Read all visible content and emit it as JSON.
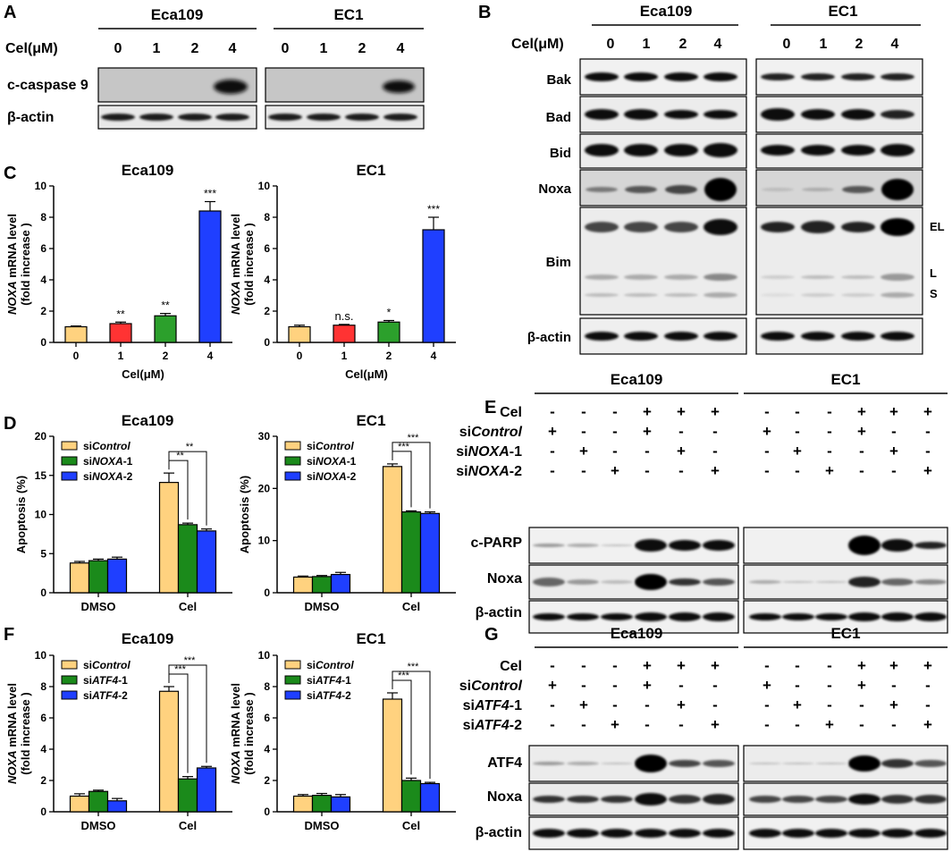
{
  "colors": {
    "bar_0": "#ffd27f",
    "bar_1": "#ff3333",
    "bar_2": "#2ca02c",
    "bar_4": "#1f3fff",
    "siControl": "#ffd27f",
    "siKD1": "#1b8a1b",
    "siKD2": "#1f3fff"
  },
  "panel_letters": {
    "A": "A",
    "B": "B",
    "C": "C",
    "D": "D",
    "E": "E",
    "F": "F",
    "G": "G"
  },
  "cells": {
    "left": "Eca109",
    "right": "EC1"
  },
  "dose_label": "Cel(μM)",
  "doses": [
    "0",
    "1",
    "2",
    "4"
  ],
  "panelA": {
    "rows": [
      "c-caspase 9",
      "β-actin"
    ]
  },
  "panelB": {
    "rows": [
      "Bak",
      "Bad",
      "Bid",
      "Noxa",
      "Bim",
      "β-actin"
    ],
    "bim_isoforms": [
      "EL",
      "L",
      "S"
    ]
  },
  "panelE": {
    "cond_labels": [
      "Cel",
      "siControl",
      "siNOXA-1",
      "siNOXA-2"
    ],
    "cond_values": [
      [
        "-",
        "-",
        "-",
        "+",
        "+",
        "+"
      ],
      [
        "+",
        "-",
        "-",
        "+",
        "-",
        "-"
      ],
      [
        "-",
        "+",
        "-",
        "-",
        "+",
        "-"
      ],
      [
        "-",
        "-",
        "+",
        "-",
        "-",
        "+"
      ]
    ],
    "rows": [
      "c-PARP",
      "Noxa",
      "β-actin"
    ]
  },
  "panelG": {
    "cond_labels": [
      "Cel",
      "siControl",
      "siATF4-1",
      "siATF4-2"
    ],
    "cond_values": [
      [
        "-",
        "-",
        "-",
        "+",
        "+",
        "+"
      ],
      [
        "+",
        "-",
        "-",
        "+",
        "-",
        "-"
      ],
      [
        "-",
        "+",
        "-",
        "-",
        "+",
        "-"
      ],
      [
        "-",
        "-",
        "+",
        "-",
        "-",
        "+"
      ]
    ],
    "rows": [
      "ATF4",
      "Noxa",
      "β-actin"
    ]
  },
  "chart_data": [
    {
      "panel": "C",
      "type": "bar",
      "title": "Eca109",
      "xlabel": "Cel(μM)",
      "ylabel": [
        "NOXA mRNA level",
        "(fold increase )"
      ],
      "categories": [
        "0",
        "1",
        "2",
        "4"
      ],
      "values": [
        1.0,
        1.2,
        1.7,
        8.4
      ],
      "errors": [
        0.05,
        0.1,
        0.15,
        0.6
      ],
      "significance": [
        "",
        "**",
        "**",
        "***"
      ],
      "ylim": [
        0,
        10
      ],
      "yticks": [
        "0",
        "2",
        "4",
        "6",
        "8",
        "10"
      ]
    },
    {
      "panel": "C",
      "type": "bar",
      "title": "EC1",
      "xlabel": "Cel(μM)",
      "ylabel": [
        "NOXA mRNA level",
        "(fold increase )"
      ],
      "categories": [
        "0",
        "1",
        "2",
        "4"
      ],
      "values": [
        1.0,
        1.1,
        1.3,
        7.2
      ],
      "errors": [
        0.1,
        0.05,
        0.1,
        0.8
      ],
      "significance": [
        "",
        "n.s.",
        "*",
        "***"
      ],
      "ylim": [
        0,
        10
      ],
      "yticks": [
        "0",
        "2",
        "4",
        "6",
        "8",
        "10"
      ]
    },
    {
      "panel": "D",
      "type": "bar",
      "title": "Eca109",
      "ylabel": [
        "Apoptosis (%)"
      ],
      "categories": [
        "DMSO",
        "Cel"
      ],
      "series": [
        {
          "name": "siControl",
          "values": [
            3.8,
            14.1
          ],
          "errors": [
            0.2,
            1.2
          ]
        },
        {
          "name": "siNOXA-1",
          "values": [
            4.1,
            8.7
          ],
          "errors": [
            0.2,
            0.2
          ]
        },
        {
          "name": "siNOXA-2",
          "values": [
            4.3,
            7.9
          ],
          "errors": [
            0.25,
            0.25
          ]
        }
      ],
      "significance": [
        "**",
        "**"
      ],
      "ylim": [
        0,
        20
      ],
      "yticks": [
        "0",
        "5",
        "10",
        "15",
        "20"
      ],
      "legend": "top-left"
    },
    {
      "panel": "D",
      "type": "bar",
      "title": "EC1",
      "ylabel": [
        "Apoptosis (%)"
      ],
      "categories": [
        "DMSO",
        "Cel"
      ],
      "series": [
        {
          "name": "siControl",
          "values": [
            3.0,
            24.2
          ],
          "errors": [
            0.2,
            0.5
          ]
        },
        {
          "name": "siNOXA-1",
          "values": [
            3.1,
            15.5
          ],
          "errors": [
            0.2,
            0.2
          ]
        },
        {
          "name": "siNOXA-2",
          "values": [
            3.5,
            15.2
          ],
          "errors": [
            0.4,
            0.3
          ]
        }
      ],
      "significance": [
        "***",
        "***"
      ],
      "ylim": [
        0,
        30
      ],
      "yticks": [
        "0",
        "10",
        "20",
        "30"
      ],
      "legend": "top-left"
    },
    {
      "panel": "F",
      "type": "bar",
      "title": "Eca109",
      "ylabel": [
        "NOXA mRNA level",
        "(fold increase )"
      ],
      "categories": [
        "DMSO",
        "Cel"
      ],
      "series": [
        {
          "name": "siControl",
          "values": [
            1.0,
            7.7
          ],
          "errors": [
            0.15,
            0.3
          ]
        },
        {
          "name": "siATF4-1",
          "values": [
            1.3,
            2.1
          ],
          "errors": [
            0.08,
            0.15
          ]
        },
        {
          "name": "siATF4-2",
          "values": [
            0.7,
            2.8
          ],
          "errors": [
            0.15,
            0.1
          ]
        }
      ],
      "significance": [
        "***",
        "***"
      ],
      "ylim": [
        0,
        10
      ],
      "yticks": [
        "0",
        "2",
        "4",
        "6",
        "8",
        "10"
      ],
      "legend": "top-left"
    },
    {
      "panel": "F",
      "type": "bar",
      "title": "EC1",
      "ylabel": [
        "NOXA mRNA level",
        "(fold increase )"
      ],
      "categories": [
        "DMSO",
        "Cel"
      ],
      "series": [
        {
          "name": "siControl",
          "values": [
            1.0,
            7.2
          ],
          "errors": [
            0.1,
            0.4
          ]
        },
        {
          "name": "siATF4-1",
          "values": [
            1.05,
            2.0
          ],
          "errors": [
            0.12,
            0.15
          ]
        },
        {
          "name": "siATF4-2",
          "values": [
            0.95,
            1.8
          ],
          "errors": [
            0.15,
            0.08
          ]
        }
      ],
      "significance": [
        "***",
        "***"
      ],
      "ylim": [
        0,
        10
      ],
      "yticks": [
        "0",
        "2",
        "4",
        "6",
        "8",
        "10"
      ],
      "legend": "top-left"
    }
  ]
}
